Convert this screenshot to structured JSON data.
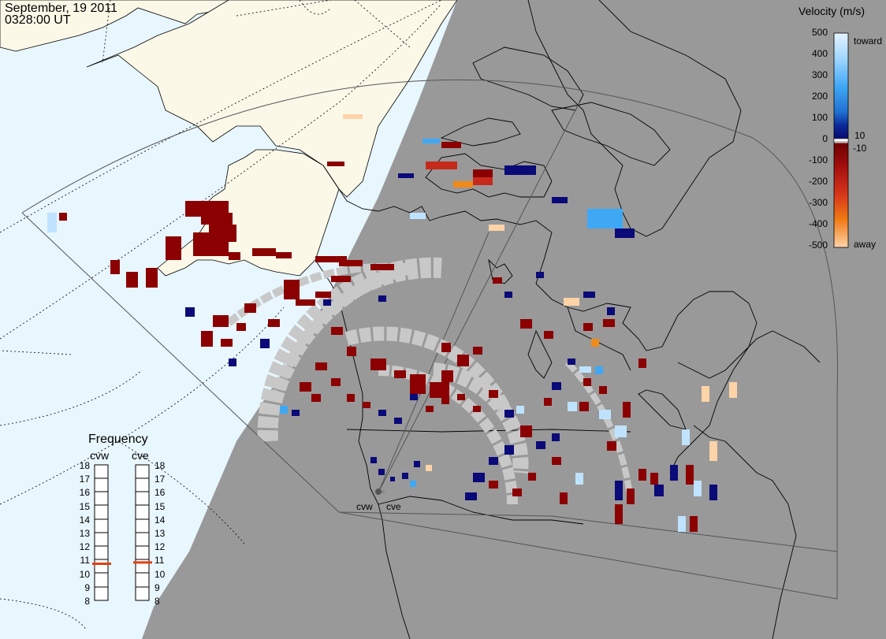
{
  "header": {
    "date": "September, 19 2011",
    "time": "0328:00 UT"
  },
  "colors": {
    "ocean": "#e8f6fd",
    "land": "#fbf8e8",
    "night": "#999999",
    "coast": "#000000",
    "ground_scatter": "#c8c8c8"
  },
  "radars": [
    {
      "id": "cvw",
      "label": "cvw"
    },
    {
      "id": "cve",
      "label": "cve"
    }
  ],
  "colorbar": {
    "title": "Velocity (m/s)",
    "ticks": [
      "500",
      "400",
      "300",
      "200",
      "100",
      "0",
      "-100",
      "-200",
      "-300",
      "-400",
      "-500"
    ],
    "inner_labels": [
      "10",
      "-10"
    ],
    "side_labels": {
      "toward": "toward",
      "away": "away"
    },
    "stops": [
      "#e6f3ff",
      "#9fd6ff",
      "#3fa8f5",
      "#1f6fd0",
      "#0b2a99",
      "#0a0a6e",
      "#ffffff",
      "#6e0000",
      "#a20e0e",
      "#d6341a",
      "#f07a14",
      "#ffd3a8"
    ]
  },
  "frequency": {
    "title": "Frequency",
    "scale": [
      "18",
      "17",
      "16",
      "15",
      "14",
      "13",
      "12",
      "11",
      "10",
      "9",
      "8"
    ],
    "columns": [
      {
        "label": "cvw",
        "value_mhz": 10.7
      },
      {
        "label": "cve",
        "value_mhz": 10.8
      }
    ]
  }
}
